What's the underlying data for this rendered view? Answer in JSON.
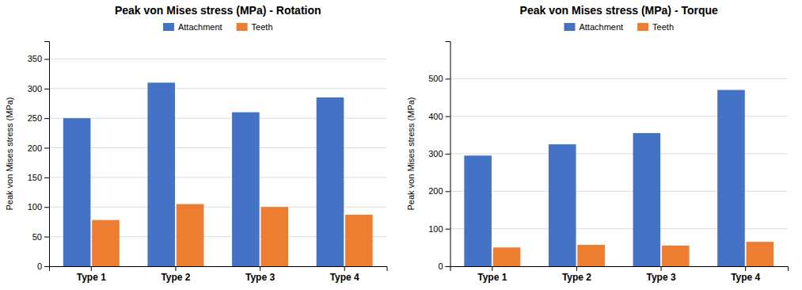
{
  "chart_data": [
    {
      "type": "bar",
      "title": "Peak von Mises stress (MPa) - Rotation",
      "y_label": "Peak von Mises stress (MPa)",
      "categories": [
        "Type 1",
        "Type 2",
        "Type 3",
        "Type 4"
      ],
      "series": [
        {
          "name": "Attachment",
          "color": "#4472C4",
          "values": [
            250,
            310,
            260,
            285
          ]
        },
        {
          "name": "Teeth",
          "color": "#ED7D31",
          "values": [
            78,
            105,
            100,
            87
          ]
        }
      ],
      "ylim": [
        0,
        380
      ],
      "yticks": [
        0,
        50,
        100,
        150,
        200,
        250,
        300,
        350
      ],
      "grid": true,
      "legend": "top"
    },
    {
      "type": "bar",
      "title": "Peak von Mises stress (MPa) - Torque",
      "y_label": "Peak von Mises stress (MPa)",
      "categories": [
        "Type 1",
        "Type 2",
        "Type 3",
        "Type 4"
      ],
      "series": [
        {
          "name": "Attachment",
          "color": "#4472C4",
          "values": [
            295,
            325,
            355,
            470
          ]
        },
        {
          "name": "Teeth",
          "color": "#ED7D31",
          "values": [
            50,
            57,
            55,
            65
          ]
        }
      ],
      "ylim": [
        0,
        600
      ],
      "yticks": [
        0,
        100,
        200,
        300,
        400,
        500
      ],
      "grid": true,
      "legend": "top"
    }
  ]
}
